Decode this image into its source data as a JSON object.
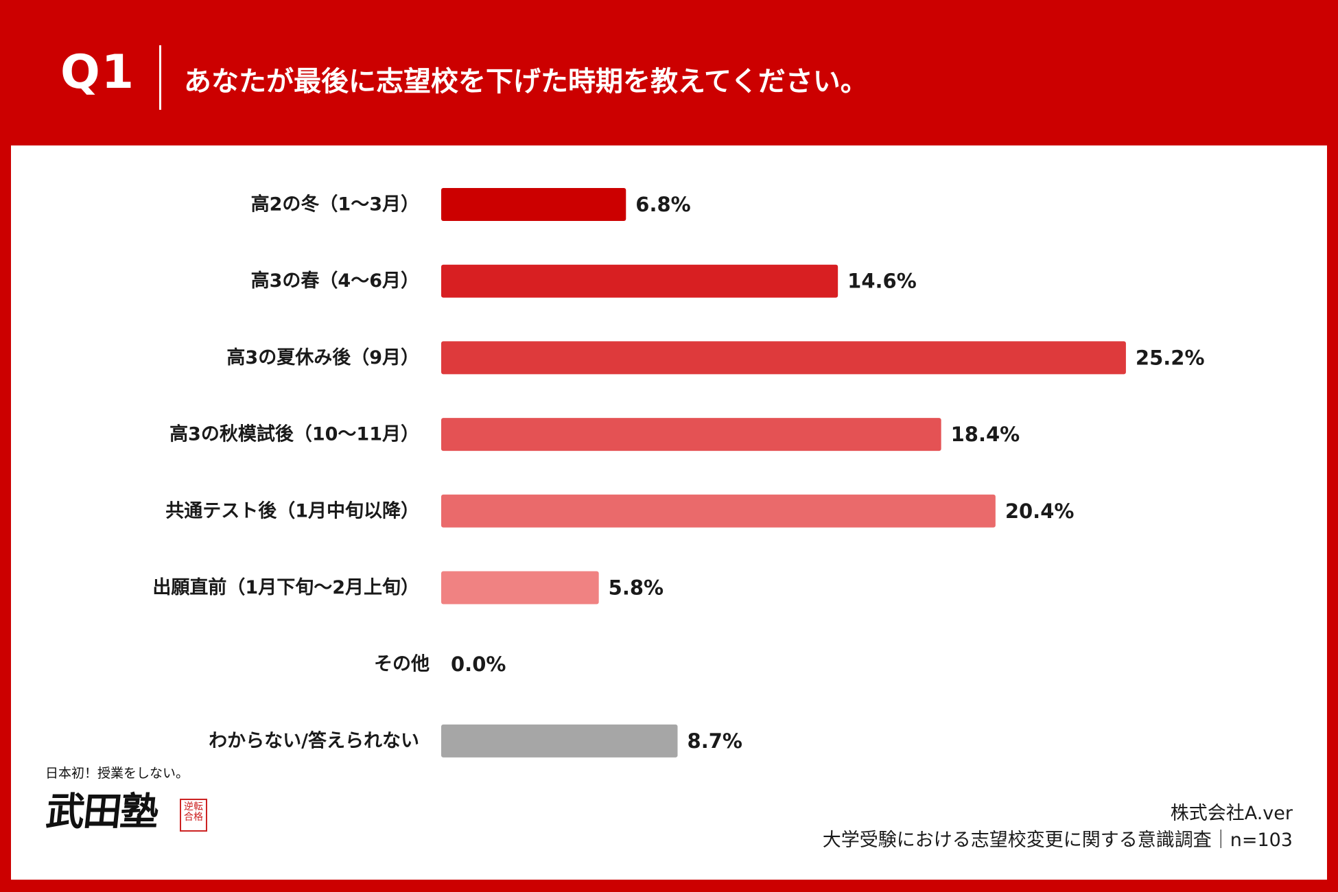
{
  "header": {
    "question_number": "Q1",
    "question_text": "あなたが最後に志望校を下げた時期を教えてください。"
  },
  "chart_data": {
    "type": "bar",
    "orientation": "horizontal",
    "unit": "%",
    "categories": [
      "高2の冬（1〜3月）",
      "高3の春（4〜6月）",
      "高3の夏休み後（9月）",
      "高3の秋模試後（10〜11月）",
      "共通テスト後（1月中旬以降）",
      "出願直前（1月下旬〜2月上旬）",
      "その他",
      "わからない/答えられない"
    ],
    "values": [
      6.8,
      14.6,
      25.2,
      18.4,
      20.4,
      5.8,
      0.0,
      8.7
    ],
    "value_labels": [
      "6.8%",
      "14.6%",
      "25.2%",
      "18.4%",
      "20.4%",
      "5.8%",
      "0.0%",
      "8.7%"
    ],
    "colors": [
      "#cc0000",
      "#d81f22",
      "#de3a3c",
      "#e45254",
      "#ea6a6b",
      "#f08282",
      "#ffffff",
      "#a6a6a6"
    ],
    "xlim": [
      0,
      28
    ],
    "grid": false,
    "legend": "none"
  },
  "logo": {
    "tagline": "日本初！授業をしない。",
    "name": "武田塾",
    "stamp": "逆転合格"
  },
  "footer": {
    "company": "株式会社A.ver",
    "survey": "大学受験における志望校変更に関する意識調査｜n=103"
  }
}
